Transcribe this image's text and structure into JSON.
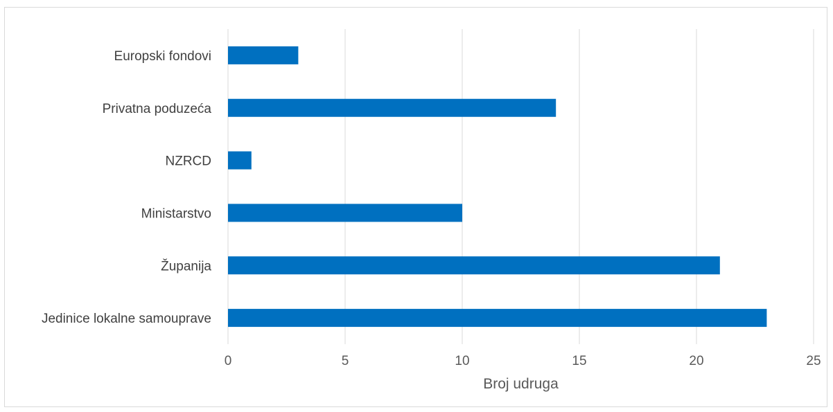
{
  "chart_data": {
    "type": "bar",
    "orientation": "horizontal",
    "categories": [
      "Jedinice lokalne samouprave",
      "Županija",
      "Ministarstvo",
      "NZRCD",
      "Privatna poduzeća",
      "Europski fondovi"
    ],
    "values": [
      23,
      21,
      10,
      1,
      14,
      3
    ],
    "title": "",
    "xlabel": "Broj udruga",
    "ylabel": "",
    "xlim": [
      0,
      25
    ],
    "xticks": [
      "0",
      "5",
      "10",
      "15",
      "20",
      "25"
    ],
    "grid": "vertical",
    "legend": "none",
    "bar_color": "#0070c0"
  }
}
